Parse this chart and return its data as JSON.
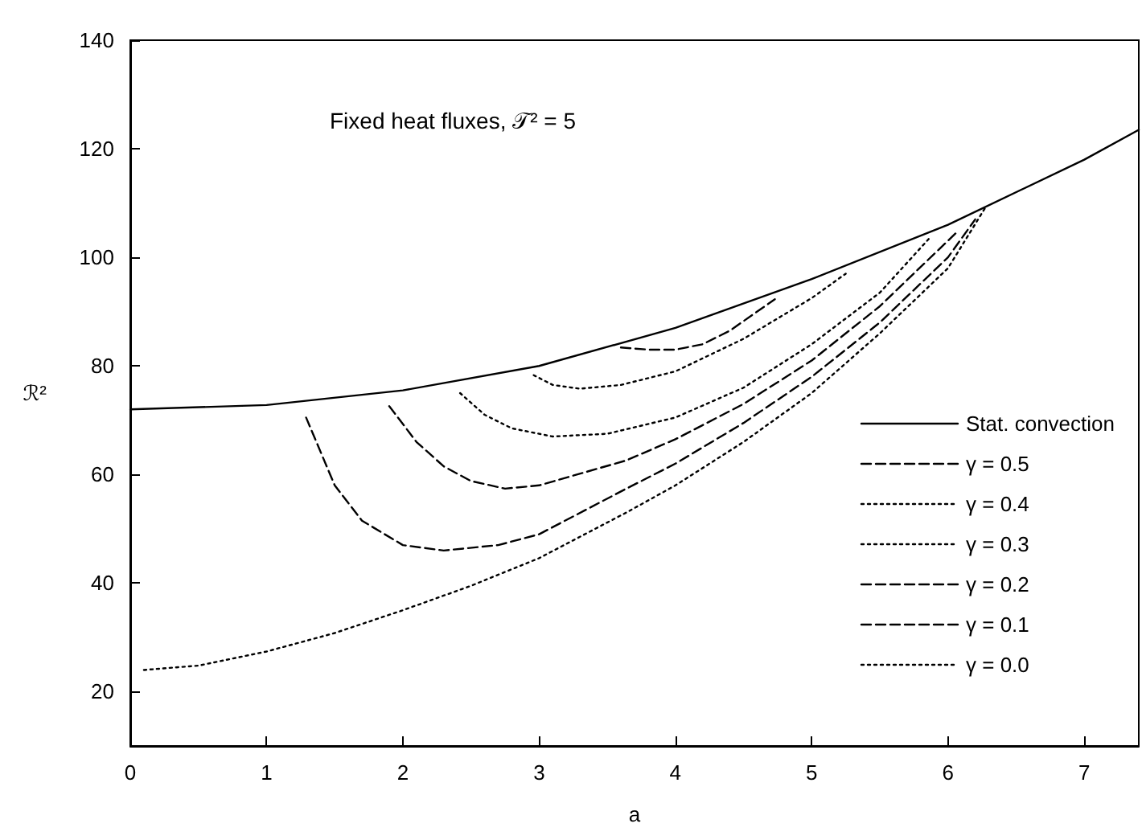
{
  "chart_data": {
    "type": "line",
    "xlabel": "a",
    "ylabel": "ℛ²",
    "annotations": [
      "Fixed heat fluxes, 𝒯² = 5"
    ],
    "xlim": [
      0,
      7.4
    ],
    "xticks": [
      0,
      1,
      2,
      3,
      4,
      5,
      6,
      7
    ],
    "ylim": [
      10,
      140
    ],
    "yticks": [
      20,
      40,
      60,
      80,
      100,
      120,
      140
    ],
    "grid": false,
    "legend": "bottom right",
    "marker": "none",
    "series": [
      {
        "name": "Stat. convection",
        "color": "#000000",
        "line_style": "solid",
        "x": [
          0,
          1,
          2,
          3,
          4,
          5,
          6,
          7,
          7.4
        ],
        "values": [
          72,
          72.8,
          75.5,
          80,
          87,
          96,
          106,
          118,
          123.5
        ]
      },
      {
        "name": "γ = 0.5",
        "color": "#000000",
        "line_style": "dashed",
        "x": [
          3.6,
          3.8,
          4.0,
          4.2,
          4.4,
          4.73
        ],
        "values": [
          83.4,
          83,
          83,
          84,
          86.5,
          92.3
        ]
      },
      {
        "name": "γ = 0.4",
        "color": "#000000",
        "line_style": "dotted",
        "x": [
          2.96,
          3.1,
          3.3,
          3.6,
          4.0,
          4.5,
          5.0,
          5.25
        ],
        "values": [
          78.3,
          76.5,
          75.8,
          76.5,
          79,
          85,
          92.5,
          97
        ]
      },
      {
        "name": "γ = 0.3",
        "color": "#000000",
        "line_style": "dotted",
        "x": [
          2.42,
          2.6,
          2.8,
          3.1,
          3.5,
          4.0,
          4.5,
          5.0,
          5.5,
          5.87
        ],
        "values": [
          75,
          71,
          68.5,
          67,
          67.5,
          70.5,
          76,
          84,
          93.5,
          103.7
        ]
      },
      {
        "name": "γ = 0.2",
        "color": "#000000",
        "line_style": "dashed",
        "x": [
          1.9,
          2.1,
          2.3,
          2.5,
          2.75,
          3.0,
          3.64,
          4.0,
          4.5,
          5.0,
          5.5,
          6.08
        ],
        "values": [
          72.6,
          66,
          61.5,
          58.8,
          57.4,
          58,
          62.6,
          66.5,
          73,
          81,
          91,
          105
        ]
      },
      {
        "name": "γ = 0.1",
        "color": "#000000",
        "line_style": "dashed",
        "x": [
          1.29,
          1.5,
          1.7,
          2.0,
          2.3,
          2.7,
          3.0,
          3.64,
          4.0,
          4.5,
          5.0,
          5.5,
          6.0,
          6.2
        ],
        "values": [
          70.5,
          58,
          51.5,
          47,
          46,
          47,
          49,
          57.4,
          62,
          69.5,
          78,
          88,
          100,
          107
        ]
      },
      {
        "name": "γ = 0.0",
        "color": "#000000",
        "line_style": "dotted",
        "x": [
          0.1,
          0.5,
          1.0,
          1.5,
          2.0,
          2.5,
          3.0,
          3.64,
          4.0,
          4.5,
          5.0,
          5.5,
          6.0,
          6.27
        ],
        "values": [
          24,
          24.8,
          27.4,
          30.8,
          35,
          39.5,
          44.6,
          53,
          58,
          66,
          75,
          86,
          98,
          109
        ]
      }
    ]
  }
}
